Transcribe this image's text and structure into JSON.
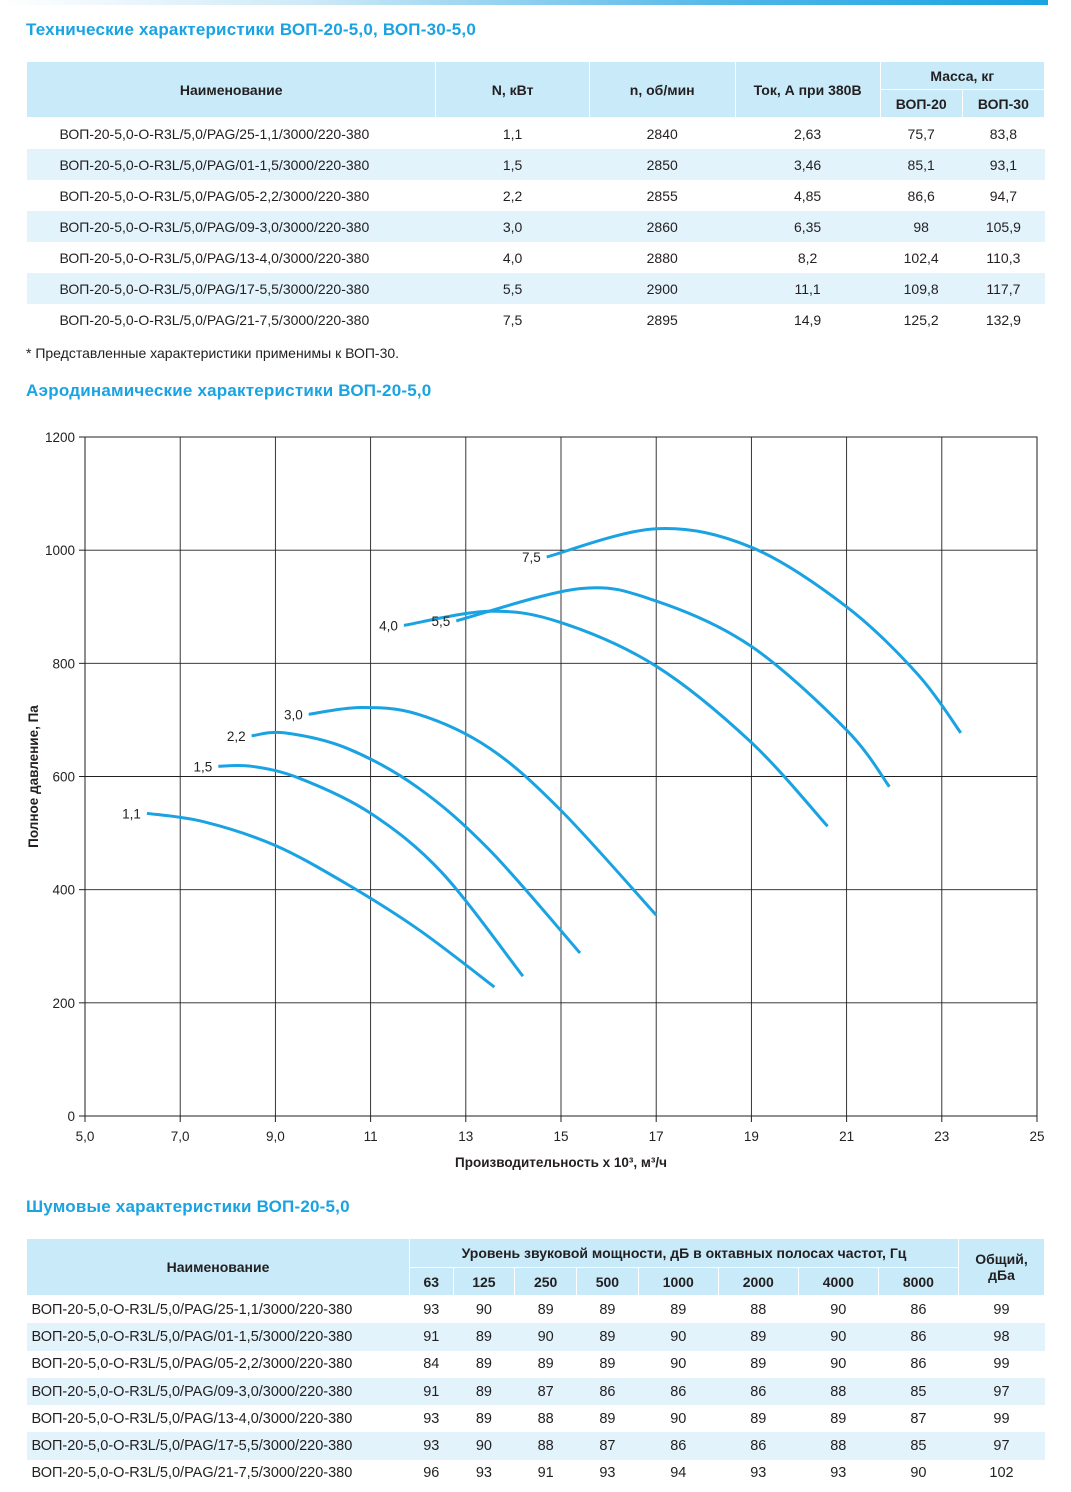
{
  "tech_title": "Технические характеристики ВОП-20-5,0, ВОП-30-5,0",
  "tech_table": {
    "headers": {
      "name": "Наименование",
      "power": "N, кВт",
      "rpm": "n, об/мин",
      "current": "Ток, А при 380В",
      "mass": "Масса, кг",
      "mass20": "ВОП-20",
      "mass30": "ВОП-30"
    },
    "rows": [
      {
        "name": "ВОП-20-5,0-O-R3L/5,0/PAG/25-1,1/3000/220-380",
        "power": "1,1",
        "rpm": "2840",
        "current": "2,63",
        "m20": "75,7",
        "m30": "83,8"
      },
      {
        "name": "ВОП-20-5,0-O-R3L/5,0/PAG/01-1,5/3000/220-380",
        "power": "1,5",
        "rpm": "2850",
        "current": "3,46",
        "m20": "85,1",
        "m30": "93,1"
      },
      {
        "name": "ВОП-20-5,0-O-R3L/5,0/PAG/05-2,2/3000/220-380",
        "power": "2,2",
        "rpm": "2855",
        "current": "4,85",
        "m20": "86,6",
        "m30": "94,7"
      },
      {
        "name": "ВОП-20-5,0-O-R3L/5,0/PAG/09-3,0/3000/220-380",
        "power": "3,0",
        "rpm": "2860",
        "current": "6,35",
        "m20": "98",
        "m30": "105,9"
      },
      {
        "name": "ВОП-20-5,0-O-R3L/5,0/PAG/13-4,0/3000/220-380",
        "power": "4,0",
        "rpm": "2880",
        "current": "8,2",
        "m20": "102,4",
        "m30": "110,3"
      },
      {
        "name": "ВОП-20-5,0-O-R3L/5,0/PAG/17-5,5/3000/220-380",
        "power": "5,5",
        "rpm": "2900",
        "current": "11,1",
        "m20": "109,8",
        "m30": "117,7"
      },
      {
        "name": "ВОП-20-5,0-O-R3L/5,0/PAG/21-7,5/3000/220-380",
        "power": "7,5",
        "rpm": "2895",
        "current": "14,9",
        "m20": "125,2",
        "m30": "132,9"
      }
    ]
  },
  "note": "* Представленные характеристики применимы к ВОП-30.",
  "aero_title": "Аэродинамические характеристики ВОП-20-5,0",
  "noise_title": "Шумовые характеристики ВОП-20-5,0",
  "noise_table": {
    "headers": {
      "name": "Наименование",
      "level": "Уровень звуковой мощности, дБ в октавных полосах частот, Гц",
      "total": "Общий, дБа"
    },
    "bands": [
      "63",
      "125",
      "250",
      "500",
      "1000",
      "2000",
      "4000",
      "8000"
    ],
    "rows": [
      {
        "name": "ВОП-20-5,0-O-R3L/5,0/PAG/25-1,1/3000/220-380",
        "values": [
          "93",
          "90",
          "89",
          "89",
          "89",
          "88",
          "90",
          "86"
        ],
        "total": "99"
      },
      {
        "name": "ВОП-20-5,0-O-R3L/5,0/PAG/01-1,5/3000/220-380",
        "values": [
          "91",
          "89",
          "90",
          "89",
          "90",
          "89",
          "90",
          "86"
        ],
        "total": "98"
      },
      {
        "name": "ВОП-20-5,0-O-R3L/5,0/PAG/05-2,2/3000/220-380",
        "values": [
          "84",
          "89",
          "89",
          "89",
          "90",
          "89",
          "90",
          "86"
        ],
        "total": "99"
      },
      {
        "name": "ВОП-20-5,0-O-R3L/5,0/PAG/09-3,0/3000/220-380",
        "values": [
          "91",
          "89",
          "87",
          "86",
          "86",
          "86",
          "88",
          "85"
        ],
        "total": "97"
      },
      {
        "name": "ВОП-20-5,0-O-R3L/5,0/PAG/13-4,0/3000/220-380",
        "values": [
          "93",
          "89",
          "88",
          "89",
          "90",
          "89",
          "89",
          "87"
        ],
        "total": "99"
      },
      {
        "name": "ВОП-20-5,0-O-R3L/5,0/PAG/17-5,5/3000/220-380",
        "values": [
          "93",
          "90",
          "88",
          "87",
          "86",
          "86",
          "88",
          "85"
        ],
        "total": "97"
      },
      {
        "name": "ВОП-20-5,0-O-R3L/5,0/PAG/21-7,5/3000/220-380",
        "values": [
          "96",
          "93",
          "91",
          "93",
          "94",
          "93",
          "93",
          "90"
        ],
        "total": "102"
      }
    ]
  },
  "chart_data": {
    "type": "line",
    "title": "",
    "xlabel": "Производительность x 10³, м³/ч",
    "ylabel": "Полное давление, Па",
    "xlim": [
      5,
      25
    ],
    "ylim": [
      0,
      1200
    ],
    "xticks": [
      5,
      7,
      9,
      11,
      13,
      15,
      17,
      19,
      21,
      23,
      25
    ],
    "xtick_labels": [
      "5,0",
      "7,0",
      "9,0",
      "11",
      "13",
      "15",
      "17",
      "19",
      "21",
      "23",
      "25"
    ],
    "yticks": [
      0,
      200,
      400,
      600,
      800,
      1000,
      1200
    ],
    "ytick_labels": [
      "0",
      "200",
      "400",
      "600",
      "800",
      "1000",
      "1200"
    ],
    "grid": true,
    "line_color": "#1aa3e2",
    "series": [
      {
        "name": "1,1",
        "x": [
          6.3,
          7.5,
          9.0,
          10.5,
          12.0,
          13.6
        ],
        "y": [
          535,
          520,
          478,
          410,
          330,
          228
        ]
      },
      {
        "name": "1,5",
        "x": [
          7.8,
          8.5,
          9.5,
          11.0,
          12.5,
          14.2
        ],
        "y": [
          618,
          618,
          597,
          535,
          430,
          247
        ]
      },
      {
        "name": "2,2",
        "x": [
          8.5,
          9.2,
          10.5,
          12.0,
          13.5,
          15.4
        ],
        "y": [
          672,
          677,
          650,
          580,
          470,
          288
        ]
      },
      {
        "name": "3,0",
        "x": [
          9.7,
          10.8,
          12.0,
          13.5,
          15.0,
          17.0
        ],
        "y": [
          710,
          722,
          710,
          650,
          540,
          355
        ]
      },
      {
        "name": "4,0",
        "x": [
          11.7,
          13.5,
          15.0,
          17.0,
          19.0,
          20.6
        ],
        "y": [
          867,
          892,
          872,
          795,
          660,
          512
        ]
      },
      {
        "name": "5,5",
        "x": [
          12.8,
          15.4,
          17.0,
          19.0,
          21.0,
          21.9
        ],
        "y": [
          875,
          932,
          910,
          830,
          682,
          582
        ]
      },
      {
        "name": "7,5",
        "x": [
          14.7,
          17.0,
          19.0,
          21.0,
          22.5,
          23.4
        ],
        "y": [
          988,
          1038,
          1005,
          900,
          780,
          677
        ]
      }
    ]
  }
}
